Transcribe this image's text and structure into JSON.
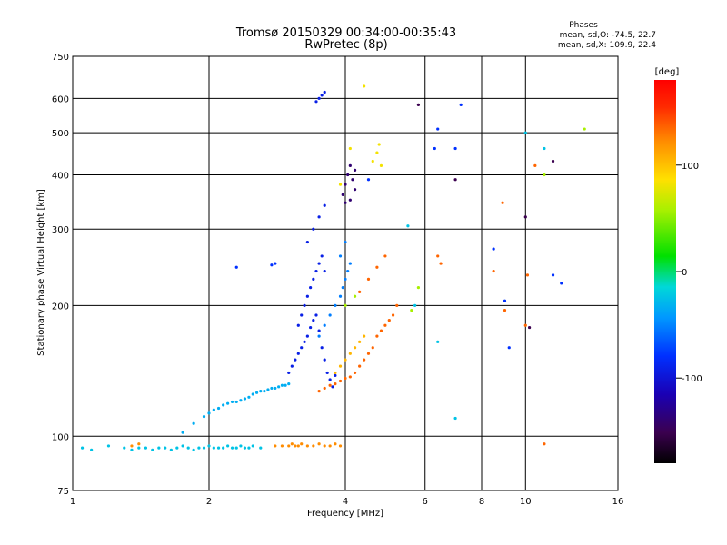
{
  "chart_data": {
    "type": "scatter",
    "title": "Tromsø 20150329 00:34:00-00:35:43",
    "subtitle": "RwPretec (8p)",
    "phases": {
      "header": "Phases",
      "line1": "mean, sd,O: -74.5, 22.7",
      "line2": "mean, sd,X: 109.9, 22.4"
    },
    "xlabel": "Frequency [MHz]",
    "ylabel": "Stationary phase Virtual Height [km]",
    "x_scale": "log",
    "y_scale": "log",
    "xlim": [
      1,
      16
    ],
    "ylim": [
      75,
      750
    ],
    "x_ticks": [
      1,
      2,
      4,
      6,
      8,
      10,
      16
    ],
    "x_tick_labels": [
      "1",
      "2",
      "4",
      "6",
      "8",
      "10",
      "16"
    ],
    "y_ticks": [
      75,
      100,
      200,
      300,
      400,
      500,
      600,
      750
    ],
    "y_tick_labels": [
      "75",
      "100",
      "200",
      "300",
      "400",
      "500",
      "600",
      "750"
    ],
    "grid": true,
    "colorbar": {
      "label": "[deg]",
      "range": [
        -180,
        180
      ],
      "ticks": [
        100,
        0,
        -100
      ],
      "tick_labels": [
        "100",
        "0",
        "-100"
      ]
    },
    "series": [
      {
        "color_phase_deg": -40,
        "x": [
          1.05,
          1.1,
          1.2,
          1.3,
          1.35,
          1.4,
          1.45,
          1.5,
          1.55,
          1.6,
          1.65,
          1.7,
          1.75,
          1.8,
          1.85,
          1.9,
          1.95,
          2.0,
          2.05,
          2.1,
          2.15,
          2.2,
          2.25,
          2.3,
          2.35,
          2.4,
          2.45,
          2.5,
          2.6
        ],
        "y": [
          94,
          93,
          95,
          94,
          93,
          94,
          94,
          93,
          94,
          94,
          93,
          94,
          95,
          94,
          93,
          94,
          94,
          95,
          94,
          94,
          94,
          95,
          94,
          94,
          95,
          94,
          94,
          95,
          94
        ]
      },
      {
        "color_phase_deg": 140,
        "x": [
          1.35,
          1.4,
          2.8,
          2.9,
          3.0,
          3.05,
          3.1,
          3.15,
          3.2,
          3.3,
          3.4,
          3.5,
          3.6,
          3.7,
          3.8,
          3.9
        ],
        "y": [
          95,
          96,
          95,
          95,
          95,
          96,
          95,
          95,
          96,
          95,
          95,
          96,
          95,
          95,
          96,
          95
        ]
      },
      {
        "color_phase_deg": -50,
        "x": [
          1.75,
          1.85,
          1.95,
          2.0,
          2.05,
          2.1,
          2.15,
          2.2,
          2.25,
          2.3,
          2.35,
          2.4,
          2.45,
          2.5,
          2.55,
          2.6,
          2.65,
          2.7,
          2.75,
          2.8,
          2.85,
          2.9,
          2.95,
          3.0
        ],
        "y": [
          102,
          107,
          111,
          113,
          115,
          116,
          118,
          119,
          120,
          120,
          121,
          122,
          123,
          125,
          126,
          127,
          127,
          128,
          129,
          129,
          130,
          131,
          131,
          132
        ]
      },
      {
        "color_phase_deg": -110,
        "x": [
          3.0,
          3.05,
          3.1,
          3.15,
          3.2,
          3.25,
          3.3,
          3.35,
          3.4,
          3.45,
          3.5,
          3.55,
          3.6,
          3.65,
          3.7,
          3.75,
          3.8,
          3.15,
          3.2,
          3.25,
          3.3,
          3.35,
          3.4,
          3.45,
          3.5,
          3.55,
          3.6,
          3.3,
          3.4,
          3.5,
          3.6,
          3.45,
          3.5,
          3.55,
          3.6
        ],
        "y": [
          140,
          145,
          150,
          155,
          160,
          165,
          170,
          178,
          185,
          190,
          175,
          160,
          150,
          140,
          135,
          130,
          138,
          180,
          190,
          200,
          210,
          220,
          230,
          240,
          250,
          260,
          240,
          280,
          300,
          320,
          340,
          590,
          600,
          610,
          620
        ]
      },
      {
        "color_phase_deg": -70,
        "x": [
          3.5,
          3.6,
          3.7,
          3.8,
          3.9,
          3.95,
          4.0,
          4.05,
          4.1,
          3.9,
          4.0
        ],
        "y": [
          170,
          180,
          190,
          200,
          210,
          220,
          230,
          240,
          250,
          260,
          280
        ]
      },
      {
        "color_phase_deg": 150,
        "x": [
          3.5,
          3.6,
          3.7,
          3.8,
          3.9,
          4.0,
          4.1,
          4.2,
          4.3,
          4.4,
          4.5,
          4.6,
          4.7,
          4.8,
          4.9,
          5.0,
          5.1,
          5.2,
          4.3,
          4.5,
          4.7,
          4.9
        ],
        "y": [
          127,
          129,
          131,
          132,
          134,
          136,
          137,
          140,
          145,
          150,
          155,
          160,
          170,
          175,
          180,
          185,
          190,
          200,
          215,
          230,
          245,
          260
        ]
      },
      {
        "color_phase_deg": 120,
        "x": [
          3.8,
          3.9,
          4.0,
          4.1,
          4.2,
          4.3,
          4.4
        ],
        "y": [
          140,
          145,
          150,
          155,
          160,
          165,
          170
        ]
      },
      {
        "color_phase_deg": 95,
        "x": [
          3.9,
          4.1,
          4.4,
          4.6,
          4.7,
          4.75,
          4.8
        ],
        "y": [
          380,
          460,
          640,
          430,
          450,
          470,
          420
        ]
      },
      {
        "color_phase_deg": -150,
        "x": [
          4.0,
          4.05,
          4.1,
          4.15,
          4.2,
          3.95,
          4.0,
          4.1,
          4.2
        ],
        "y": [
          380,
          400,
          420,
          390,
          410,
          360,
          345,
          350,
          370
        ]
      },
      {
        "color_phase_deg": -100,
        "x": [
          2.3,
          2.75,
          2.8,
          4.5,
          6.3,
          6.4,
          7.0,
          7.2,
          8.5,
          9.0,
          9.2,
          11.5,
          12.0
        ],
        "y": [
          245,
          248,
          250,
          390,
          460,
          510,
          460,
          580,
          270,
          205,
          160,
          235,
          225
        ]
      },
      {
        "color_phase_deg": 150,
        "x": [
          6.4,
          6.5,
          8.5,
          8.9,
          9.0,
          10.0,
          10.1,
          10.5,
          11.0
        ],
        "y": [
          260,
          250,
          240,
          345,
          195,
          180,
          235,
          420,
          96
        ]
      },
      {
        "color_phase_deg": -160,
        "x": [
          5.8,
          7.0,
          10.0,
          10.2,
          11.5
        ],
        "y": [
          580,
          390,
          320,
          178,
          430
        ]
      },
      {
        "color_phase_deg": -40,
        "x": [
          5.5,
          5.7,
          6.4,
          7.0,
          10.0,
          11.0
        ],
        "y": [
          305,
          200,
          165,
          110,
          500,
          460
        ]
      },
      {
        "color_phase_deg": 60,
        "x": [
          4.0,
          4.2,
          5.6,
          5.8,
          11.0,
          13.5
        ],
        "y": [
          200,
          210,
          195,
          220,
          400,
          510
        ]
      }
    ]
  }
}
